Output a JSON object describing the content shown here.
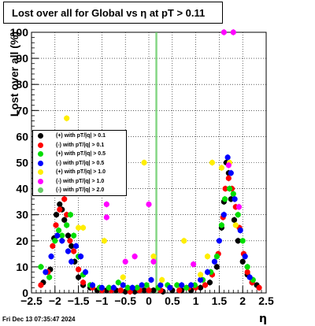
{
  "header": {
    "title": "Lost over all for Global vs   η at pT > 0.11"
  },
  "footer": {
    "datestamp": "Fri Dec 13 07:35:47 2024"
  },
  "chart_data": {
    "type": "scatter",
    "title": "Lost over all for Global vs   η at pT > 0.11",
    "xlabel": "η",
    "ylabel": "Lost over all (%)",
    "xlim": [
      -2.5,
      2.5
    ],
    "ylim": [
      0,
      100
    ],
    "xticks": [
      "−2.5",
      "−2",
      "−1.5",
      "−1",
      "−0.5",
      "0",
      "0.5",
      "1",
      "1.5",
      "2",
      "2.5"
    ],
    "yticks": [
      "0",
      "10",
      "20",
      "30",
      "40",
      "50",
      "60",
      "70",
      "80",
      "90",
      "100"
    ],
    "grid": true,
    "legend_position": "center-left",
    "vertical_lines": [
      0.15,
      0.17
    ],
    "series": [
      {
        "name": "(+) with pT/|q| > 0.1",
        "color": "#000000",
        "points": [
          [
            -2.25,
            4
          ],
          [
            -2.1,
            9
          ],
          [
            -2.02,
            21
          ],
          [
            -1.97,
            30
          ],
          [
            -1.9,
            34
          ],
          [
            -1.85,
            32
          ],
          [
            -1.8,
            28
          ],
          [
            -1.72,
            22
          ],
          [
            -1.65,
            18
          ],
          [
            -1.58,
            12
          ],
          [
            -1.5,
            6
          ],
          [
            -1.4,
            3
          ],
          [
            -1.25,
            2
          ],
          [
            -1.1,
            1
          ],
          [
            -0.9,
            1
          ],
          [
            -0.7,
            1
          ],
          [
            -0.5,
            0.5
          ],
          [
            -0.3,
            0.5
          ],
          [
            -0.1,
            1
          ],
          [
            0.1,
            1
          ],
          [
            0.3,
            0.5
          ],
          [
            0.5,
            1
          ],
          [
            0.7,
            1
          ],
          [
            0.9,
            1
          ],
          [
            1.1,
            2
          ],
          [
            1.3,
            4
          ],
          [
            1.45,
            10
          ],
          [
            1.55,
            25
          ],
          [
            1.6,
            35
          ],
          [
            1.65,
            50
          ],
          [
            1.7,
            46
          ],
          [
            1.75,
            36
          ],
          [
            1.82,
            28
          ],
          [
            1.9,
            20
          ],
          [
            2.0,
            12
          ],
          [
            2.1,
            7
          ],
          [
            2.2,
            4
          ],
          [
            2.3,
            3
          ]
        ]
      },
      {
        "name": "(-) with pT/|q| > 0.1",
        "color": "#ff0000",
        "points": [
          [
            -2.3,
            3
          ],
          [
            -2.15,
            8
          ],
          [
            -2.05,
            18
          ],
          [
            -1.98,
            26
          ],
          [
            -1.9,
            32
          ],
          [
            -1.8,
            36
          ],
          [
            -1.75,
            30
          ],
          [
            -1.68,
            20
          ],
          [
            -1.6,
            16
          ],
          [
            -1.5,
            9
          ],
          [
            -1.4,
            4
          ],
          [
            -1.2,
            2
          ],
          [
            -1.0,
            1
          ],
          [
            -0.8,
            1
          ],
          [
            -0.6,
            1
          ],
          [
            -0.4,
            0.5
          ],
          [
            -0.2,
            1
          ],
          [
            0,
            1
          ],
          [
            0.25,
            1
          ],
          [
            0.45,
            2
          ],
          [
            0.65,
            1
          ],
          [
            0.85,
            2
          ],
          [
            1.0,
            2
          ],
          [
            1.2,
            3
          ],
          [
            1.35,
            7
          ],
          [
            1.48,
            15
          ],
          [
            1.58,
            29
          ],
          [
            1.63,
            40
          ],
          [
            1.7,
            44
          ],
          [
            1.77,
            40
          ],
          [
            1.85,
            33
          ],
          [
            1.93,
            25
          ],
          [
            2.02,
            15
          ],
          [
            2.1,
            8
          ],
          [
            2.2,
            4
          ],
          [
            2.35,
            2
          ]
        ]
      },
      {
        "name": "(+) with pT/|q| > 0.5",
        "color": "#00dd00",
        "points": [
          [
            -2.3,
            10
          ],
          [
            -2.12,
            6
          ],
          [
            -2.0,
            20
          ],
          [
            -1.92,
            24
          ],
          [
            -1.85,
            22
          ],
          [
            -1.75,
            26
          ],
          [
            -1.67,
            30
          ],
          [
            -1.6,
            22
          ],
          [
            -1.5,
            14
          ],
          [
            -1.4,
            7
          ],
          [
            -1.25,
            3
          ],
          [
            -1.05,
            2
          ],
          [
            -0.85,
            2
          ],
          [
            -0.65,
            4
          ],
          [
            -0.45,
            2
          ],
          [
            -0.25,
            2
          ],
          [
            -0.05,
            3
          ],
          [
            0.2,
            2
          ],
          [
            0.4,
            3
          ],
          [
            0.6,
            3
          ],
          [
            0.8,
            2
          ],
          [
            0.98,
            3
          ],
          [
            1.15,
            5
          ],
          [
            1.32,
            8
          ],
          [
            1.45,
            14
          ],
          [
            1.55,
            26
          ],
          [
            1.62,
            36
          ],
          [
            1.72,
            40
          ],
          [
            1.8,
            38
          ],
          [
            1.9,
            30
          ],
          [
            2.0,
            20
          ],
          [
            2.1,
            10
          ],
          [
            2.22,
            5
          ]
        ]
      },
      {
        "name": "(-) with pT/|q| > 0.5",
        "color": "#0000ff",
        "points": [
          [
            -2.2,
            8
          ],
          [
            -2.08,
            14
          ],
          [
            -1.95,
            22
          ],
          [
            -1.85,
            20
          ],
          [
            -1.72,
            16
          ],
          [
            -1.65,
            12
          ],
          [
            -1.55,
            18
          ],
          [
            -1.45,
            14
          ],
          [
            -1.35,
            8
          ],
          [
            -1.2,
            3
          ],
          [
            -1.0,
            2
          ],
          [
            -0.75,
            2
          ],
          [
            -0.55,
            3
          ],
          [
            -0.35,
            2
          ],
          [
            -0.15,
            3
          ],
          [
            0.05,
            5
          ],
          [
            0.25,
            3
          ],
          [
            0.45,
            2
          ],
          [
            0.7,
            3
          ],
          [
            0.9,
            3
          ],
          [
            1.1,
            5
          ],
          [
            1.25,
            8
          ],
          [
            1.4,
            12
          ],
          [
            1.5,
            20
          ],
          [
            1.6,
            30
          ],
          [
            1.68,
            52
          ],
          [
            1.75,
            46
          ],
          [
            1.83,
            36
          ],
          [
            1.95,
            24
          ],
          [
            2.05,
            14
          ],
          [
            2.15,
            6
          ]
        ]
      },
      {
        "name": "(+) with pT/|q| > 1.0",
        "color": "#ffee00",
        "points": [
          [
            -1.75,
            67
          ],
          [
            -1.5,
            25
          ],
          [
            -1.4,
            25
          ],
          [
            -0.95,
            20
          ],
          [
            -0.55,
            6
          ],
          [
            -0.1,
            50
          ],
          [
            0.1,
            14
          ],
          [
            0.28,
            5
          ],
          [
            0.75,
            20
          ],
          [
            1.1,
            7
          ],
          [
            1.25,
            14
          ],
          [
            1.35,
            50
          ],
          [
            1.55,
            48
          ],
          [
            1.72,
            50
          ],
          [
            1.85,
            26
          ]
        ]
      },
      {
        "name": "(-) with pT/|q| > 1.0",
        "color": "#ff00ff",
        "points": [
          [
            -0.9,
            34
          ],
          [
            -0.9,
            29
          ],
          [
            -0.5,
            12
          ],
          [
            -0.3,
            14
          ],
          [
            0,
            34
          ],
          [
            0.1,
            12
          ],
          [
            0.95,
            11
          ],
          [
            1.6,
            100
          ],
          [
            1.8,
            100
          ],
          [
            1.92,
            33
          ],
          [
            1.7,
            49
          ]
        ]
      },
      {
        "name": "(-) with pT/|q| > 2.0",
        "color": "#66cc66",
        "points": []
      }
    ]
  }
}
